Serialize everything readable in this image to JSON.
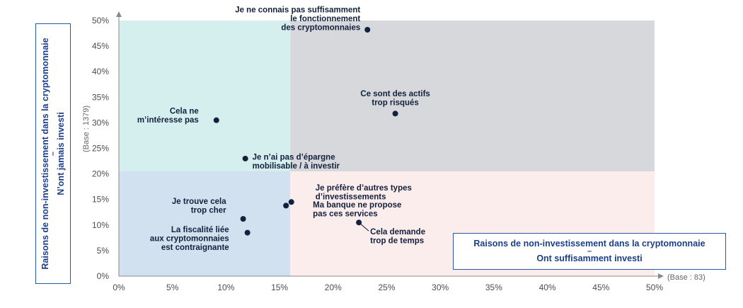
{
  "chart_data": {
    "type": "scatter",
    "title": "",
    "xlim": [
      0,
      50
    ],
    "ylim": [
      0,
      50
    ],
    "x_ticks": [
      "0%",
      "5%",
      "10%",
      "15%",
      "20%",
      "25%",
      "30%",
      "35%",
      "40%",
      "45%",
      "50%"
    ],
    "y_ticks": [
      "0%",
      "5%",
      "10%",
      "15%",
      "20%",
      "25%",
      "30%",
      "35%",
      "40%",
      "45%",
      "50%"
    ],
    "quadrant_split": {
      "x": 16,
      "y": 20.5
    },
    "quadrant_colors": {
      "top_left": "#d5eeee",
      "top_right": "#d6d8dc",
      "bottom_left": "#d1e1ef",
      "bottom_right": "#fbedeb"
    },
    "point_color": "#13213d",
    "label_color": "#13213d",
    "points": [
      {
        "label": [
          "Je ne connais pas suffisamment",
          "le fonctionnement",
          "des cryptomonnaies"
        ],
        "x": 23.2,
        "y": 48.2
      },
      {
        "label": [
          "Ce sont des actifs",
          "trop risqués"
        ],
        "x": 25.8,
        "y": 31.8
      },
      {
        "label": [
          "Cela ne",
          "m’intéresse pas"
        ],
        "x": 9.1,
        "y": 30.5
      },
      {
        "label": [
          "Je n’ai pas d’épargne",
          "mobilisable / à investir"
        ],
        "x": 11.8,
        "y": 23.0
      },
      {
        "label": [
          "Je préfère d’autres types",
          "d’investissements"
        ],
        "x": 16.1,
        "y": 14.5
      },
      {
        "label": [
          "Ma banque ne propose",
          "pas ces services"
        ],
        "x": 15.6,
        "y": 13.8
      },
      {
        "label": [
          "Je trouve cela",
          "trop cher"
        ],
        "x": 11.6,
        "y": 11.2
      },
      {
        "label": [
          "Cela demande",
          "trop de temps"
        ],
        "x": 22.4,
        "y": 10.5
      },
      {
        "label": [
          "La fiscalité liée",
          "aux cryptomonnaies",
          "est contraignante"
        ],
        "x": 12.0,
        "y": 8.5
      }
    ],
    "y_axis_title": [
      "Raisons de non-investissement dans la cryptomonnaie",
      "–",
      "N’ont jamais investi"
    ],
    "x_axis_title": [
      "Raisons de non-investissement dans la cryptomonnaie",
      "–",
      "Ont suffisamment investi"
    ],
    "y_base_note": "(Base : 1379)",
    "x_base_note": "(Base : 83)"
  }
}
